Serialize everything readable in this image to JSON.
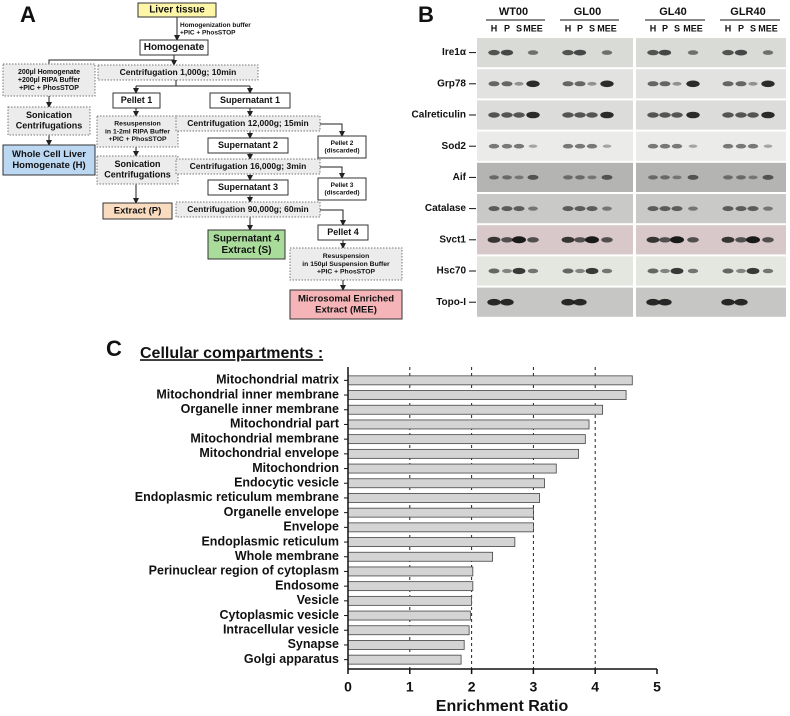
{
  "panel_labels": [
    "A",
    "B",
    "C"
  ],
  "panel_a": {
    "nodes": [
      {
        "lines": [
          "Liver tissue"
        ]
      },
      {
        "lines": [
          "Homogenization buffer",
          "+PIC + PhosSTOP"
        ]
      },
      {
        "lines": [
          "Homogenate"
        ]
      },
      {
        "lines": [
          "200µl Homogenate",
          "+200µl RIPA Buffer",
          "+PIC + PhosSTOP"
        ]
      },
      {
        "lines": [
          "Centrifugation 1,000g; 10min"
        ]
      },
      {
        "lines": [
          "Sonication",
          "Centrifugations"
        ]
      },
      {
        "lines": [
          "Whole Cell Liver",
          "Homogenate (H)"
        ]
      },
      {
        "lines": [
          "Pellet 1"
        ]
      },
      {
        "lines": [
          "Supernatant 1"
        ]
      },
      {
        "lines": [
          "Resuspension",
          "in 1-2ml RIPA Buffer",
          "+PIC + PhosSTOP"
        ]
      },
      {
        "lines": [
          "Sonication",
          "Centrifugations"
        ]
      },
      {
        "lines": [
          "Extract (P)"
        ]
      },
      {
        "lines": [
          "Centrifugation 12,000g; 15min"
        ]
      },
      {
        "lines": [
          "Supernatant 2"
        ]
      },
      {
        "lines": [
          "Pellet 2",
          "(discarded)"
        ]
      },
      {
        "lines": [
          "Centrifugation 16,000g; 3min"
        ]
      },
      {
        "lines": [
          "Supernatant 3"
        ]
      },
      {
        "lines": [
          "Pellet 3",
          "(discarded)"
        ]
      },
      {
        "lines": [
          "Centrifugation 90,000g; 60min"
        ]
      },
      {
        "lines": [
          "Supernatant 4",
          "Extract (S)"
        ]
      },
      {
        "lines": [
          "Pellet 4"
        ]
      },
      {
        "lines": [
          "Resuspension",
          "in 150µl Suspension Buffer",
          "+PIC + PhosSTOP"
        ]
      },
      {
        "lines": [
          "Microsomal Enriched",
          "Extract (MEE)"
        ]
      }
    ]
  },
  "panel_b": {
    "groups": [
      {
        "name": "WT00",
        "lanes": [
          "H",
          "P",
          "S",
          "MEE"
        ]
      },
      {
        "name": "GL00",
        "lanes": [
          "H",
          "P",
          "S",
          "MEE"
        ]
      },
      {
        "name": "GL40",
        "lanes": [
          "H",
          "P",
          "S",
          "MEE"
        ]
      },
      {
        "name": "GLR40",
        "lanes": [
          "H",
          "P",
          "S",
          "MEE"
        ]
      }
    ],
    "proteins": [
      "Ire1α",
      "Grp78",
      "Calreticulin",
      "Sod2",
      "Aif",
      "Catalase",
      "Svct1",
      "Hsc70",
      "Topo-I"
    ]
  },
  "chart_data": {
    "type": "bar",
    "orientation": "horizontal",
    "title": "Cellular compartments :",
    "xlabel": "Enrichment Ratio",
    "categories": [
      "Mitochondrial matrix",
      "Mitochondrial inner membrane",
      "Organelle inner membrane",
      "Mitochondrial part",
      "Mitochondrial membrane",
      "Mitochondrial envelope",
      "Mitochondrion",
      "Endocytic vesicle",
      "Endoplasmic reticulum membrane",
      "Organelle envelope",
      "Envelope",
      "Endoplasmic reticulum",
      "Whole membrane",
      "Perinuclear region of cytoplasm",
      "Endosome",
      "Vesicle",
      "Cytoplasmic vesicle",
      "Intracellular vesicle",
      "Synapse",
      "Golgi apparatus"
    ],
    "values": [
      4.6,
      4.5,
      4.12,
      3.9,
      3.84,
      3.73,
      3.37,
      3.18,
      3.1,
      3.0,
      3.0,
      2.7,
      2.34,
      2.02,
      2.02,
      2.0,
      1.98,
      1.96,
      1.88,
      1.83
    ],
    "color": "#d4d4d4",
    "xlim": [
      0,
      5
    ],
    "xticks": [
      0,
      1,
      2,
      3,
      4,
      5
    ],
    "grid": true
  }
}
